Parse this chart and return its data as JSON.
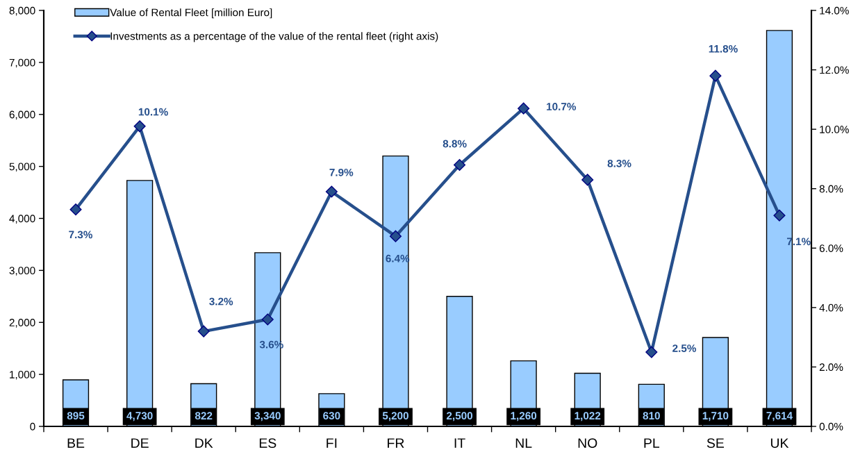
{
  "chart_data": {
    "type": "bar",
    "categories": [
      "BE",
      "DE",
      "DK",
      "ES",
      "FI",
      "FR",
      "IT",
      "NL",
      "NO",
      "PL",
      "SE",
      "UK"
    ],
    "series": [
      {
        "name": "Value of Rental Fleet [million Euro]",
        "color": "#99ccff",
        "values": [
          895,
          4730,
          822,
          3340,
          630,
          5200,
          2500,
          1260,
          1022,
          810,
          1710,
          7614
        ],
        "value_labels": [
          "895",
          "4,730",
          "822",
          "3,340",
          "630",
          "5,200",
          "2,500",
          "1,260",
          "1,022",
          "810",
          "1,710",
          "7,614"
        ]
      },
      {
        "name": "Investments as a percentage of the value of the rental fleet (right axis)",
        "type": "line",
        "axis": "y2",
        "color": "#264f8c",
        "marker": "diamond",
        "line_style": "solid",
        "values": [
          7.3,
          10.1,
          3.2,
          3.6,
          7.9,
          6.4,
          8.8,
          10.7,
          8.3,
          2.5,
          11.8,
          7.1
        ],
        "value_labels": [
          "7.3%",
          "10.1%",
          "3.2%",
          "3.6%",
          "7.9%",
          "6.4%",
          "8.8%",
          "10.7%",
          "8.3%",
          "2.5%",
          "11.8%",
          "7.1%"
        ]
      }
    ],
    "ylim": [
      0,
      8000
    ],
    "yticks": [
      {
        "value": 0,
        "label": "0"
      },
      {
        "value": 1000,
        "label": "1,000"
      },
      {
        "value": 2000,
        "label": "2,000"
      },
      {
        "value": 3000,
        "label": "3,000"
      },
      {
        "value": 4000,
        "label": "4,000"
      },
      {
        "value": 5000,
        "label": "5,000"
      },
      {
        "value": 6000,
        "label": "6,000"
      },
      {
        "value": 7000,
        "label": "7,000"
      },
      {
        "value": 8000,
        "label": "8,000"
      }
    ],
    "y2lim": [
      0,
      14
    ],
    "y2ticks": [
      {
        "value": 0,
        "label": "0.0%"
      },
      {
        "value": 2,
        "label": "2.0%"
      },
      {
        "value": 4,
        "label": "4.0%"
      },
      {
        "value": 6,
        "label": "6.0%"
      },
      {
        "value": 8,
        "label": "8.0%"
      },
      {
        "value": 10,
        "label": "10.0%"
      },
      {
        "value": 12,
        "label": "12.0%"
      },
      {
        "value": 14,
        "label": "14.0%"
      }
    ],
    "legend": "top left",
    "grid": false
  }
}
